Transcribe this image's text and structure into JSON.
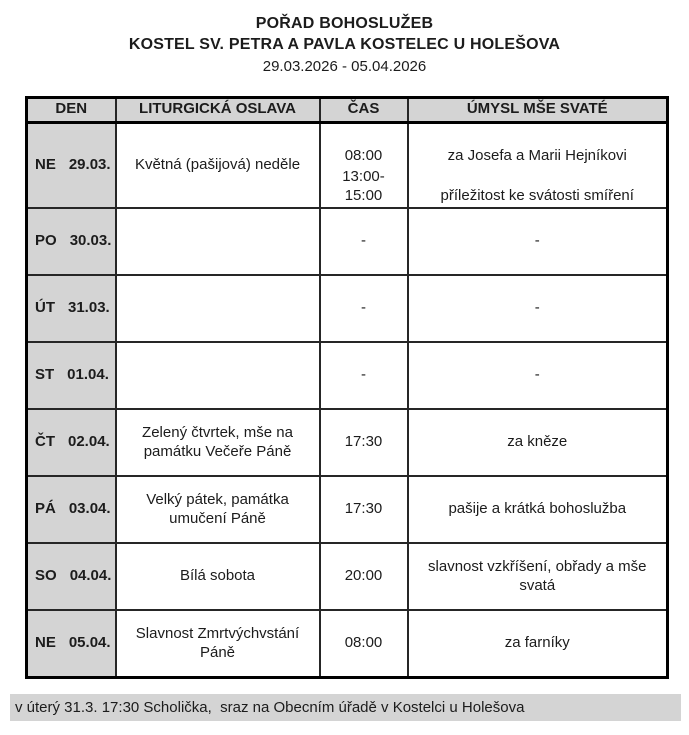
{
  "page": {
    "title": "POŘAD BOHOSLUŽEB",
    "subtitle": "KOSTEL SV. PETRA A PAVLA KOSTELEC U HOLEŠOVA",
    "date_range": "29.03.2026 - 05.04.2026"
  },
  "table": {
    "headers": [
      "DEN",
      "LITURGICKÁ OSLAVA",
      "ČAS",
      "ÚMYSL MŠE SVATÉ"
    ],
    "rows": [
      {
        "day": "NE",
        "date": "29.03.",
        "celebration": "Květná (pašijová) neděle",
        "entries": [
          {
            "time": "08:00",
            "intention": "za Josefa a Marii Hejníkovi"
          },
          {
            "time": "13:00-15:00",
            "intention": "příležitost ke svátosti smíření"
          }
        ]
      },
      {
        "day": "PO",
        "date": "30.03.",
        "celebration": "",
        "entries": [
          {
            "time": "-",
            "intention": "-"
          }
        ]
      },
      {
        "day": "ÚT",
        "date": "31.03.",
        "celebration": "",
        "entries": [
          {
            "time": "-",
            "intention": "-"
          }
        ]
      },
      {
        "day": "ST",
        "date": "01.04.",
        "celebration": "",
        "entries": [
          {
            "time": "-",
            "intention": "-"
          }
        ]
      },
      {
        "day": "ČT",
        "date": "02.04.",
        "celebration": "Zelený čtvrtek, mše na památku Večeře Páně",
        "entries": [
          {
            "time": "17:30",
            "intention": "za kněze"
          }
        ]
      },
      {
        "day": "PÁ",
        "date": "03.04.",
        "celebration": "Velký pátek, památka umučení Páně",
        "entries": [
          {
            "time": "17:30",
            "intention": "pašije a krátká bohoslužba"
          }
        ]
      },
      {
        "day": "SO",
        "date": "04.04.",
        "celebration": "Bílá sobota",
        "entries": [
          {
            "time": "20:00",
            "intention": "slavnost vzkříšení, obřady a mše svatá"
          }
        ]
      },
      {
        "day": "NE",
        "date": "05.04.",
        "celebration": "Slavnost Zmrtvýchvstání Páně",
        "entries": [
          {
            "time": "08:00",
            "intention": "za farníky"
          }
        ]
      }
    ]
  },
  "footer": {
    "note": "v úterý 31.3. 17:30 Scholička,  sraz na Obecním úřadě v Kostelci u Holešova"
  },
  "colors": {
    "header_bg": "#d4d4d4",
    "outer_border": "#000000",
    "inner_border": "#262626"
  }
}
